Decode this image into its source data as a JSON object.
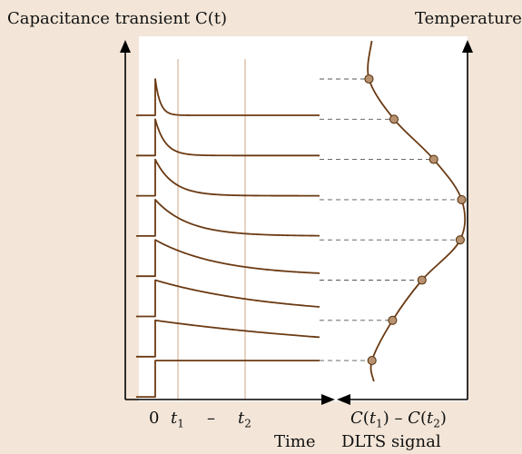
{
  "diagram": {
    "left_axis_label": "Capacitance transient C(t)",
    "right_axis_label": "Temperature",
    "x_label_zero": "0",
    "x_label_t1": "t",
    "x_label_t1_sub": "1",
    "x_label_dash": "–",
    "x_label_t2": "t",
    "x_label_t2_sub": "2",
    "bottom_label_time": "Time",
    "signal_expression": "C(t1) – C(t2)",
    "bottom_label_signal": "DLTS signal"
  },
  "transients": [
    {
      "peak": 1.0,
      "tau": 0.03
    },
    {
      "peak": 1.0,
      "tau": 0.06
    },
    {
      "peak": 1.0,
      "tau": 0.11
    },
    {
      "peak": 1.0,
      "tau": 0.2
    },
    {
      "peak": 1.0,
      "tau": 0.4
    },
    {
      "peak": 1.0,
      "tau": 0.75
    },
    {
      "peak": 1.0,
      "tau": 1.6
    },
    {
      "peak": 1.0,
      "tau": 1000
    }
  ],
  "dlts_signal": [
    0.33,
    0.5,
    0.77,
    0.96,
    0.95,
    0.69,
    0.49,
    0.35
  ],
  "colors": {
    "background": "#f3e6d8",
    "panel": "#ffffff",
    "curve": "#6b3a13",
    "marker_line": "#d6b49a",
    "dashed": "#555555",
    "axis": "#000000",
    "point_fill": "#b89270",
    "point_stroke": "#5a3712"
  }
}
